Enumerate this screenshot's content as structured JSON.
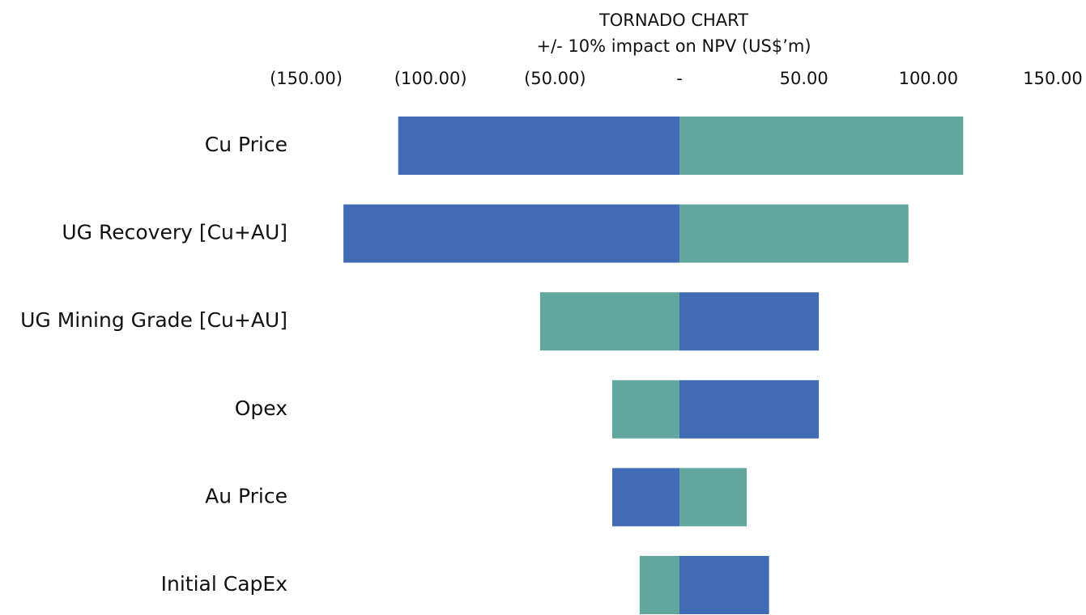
{
  "chart_data": {
    "type": "tornado",
    "title": "TORNADO CHART",
    "subtitle": "+/- 10% impact on NPV (US$’m)",
    "categories": [
      "Cu Price",
      "UG Recovery [Cu+AU]",
      "UG Mining Grade [Cu+AU]",
      "Opex",
      "Au Price",
      "Initial CapEx"
    ],
    "series": [
      {
        "color": "#416bb5",
        "values": [
          -113,
          -135,
          56,
          56,
          -27,
          36
        ]
      },
      {
        "color": "#62a79e",
        "values": [
          114,
          92,
          -56,
          -27,
          27,
          -16
        ]
      }
    ],
    "xlim": [
      -150,
      150
    ],
    "xticks": [
      {
        "value": -150,
        "label": "(150.00)"
      },
      {
        "value": -100,
        "label": "(100.00)"
      },
      {
        "value": -50,
        "label": "(50.00)"
      },
      {
        "value": 0,
        "label": "-"
      },
      {
        "value": 50,
        "label": "50.00"
      },
      {
        "value": 100,
        "label": "100.00"
      },
      {
        "value": 150,
        "label": "150.00"
      }
    ],
    "grid": false
  }
}
